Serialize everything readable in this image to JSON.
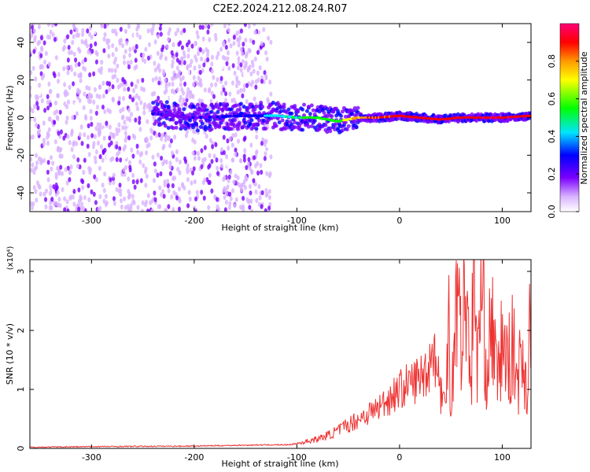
{
  "figure_title": "C2E2.2024.212.08.24.R07",
  "colorbar_label": "Normalized spectral amplitude",
  "colorbar_ticks": [
    "0.0",
    "0.2",
    "0.4",
    "0.6",
    "0.8"
  ],
  "colorscale": [
    "#ffffff",
    "#d9b3ff",
    "#7a00ff",
    "#0000ff",
    "#00e5ff",
    "#00ff00",
    "#ffff00",
    "#ff9900",
    "#ff0000",
    "#ff0077"
  ],
  "chart_data": [
    {
      "type": "heatmap",
      "title": "",
      "xlabel": "Height of straight line (km)",
      "ylabel": "Frequency (Hz)",
      "xlim": [
        -360,
        128
      ],
      "ylim": [
        -50,
        50
      ],
      "x_ticks": [
        "-300",
        "-200",
        "-100",
        "0",
        "100"
      ],
      "y_ticks": [
        "-40",
        "-20",
        "0",
        "20",
        "40"
      ],
      "color_range": [
        0,
        1
      ],
      "ridge": {
        "description": "narrow high-amplitude line near 0 Hz",
        "x": [
          -240,
          -200,
          -150,
          -120,
          -100,
          -80,
          -60,
          -40,
          -20,
          0,
          20,
          40,
          60,
          80,
          100,
          128
        ],
        "frequency": [
          2,
          0,
          1,
          1,
          0,
          0,
          -2,
          0,
          0,
          1,
          0,
          -1,
          0,
          0,
          0,
          1
        ],
        "amplitude": [
          0.25,
          0.25,
          0.3,
          0.45,
          0.5,
          0.55,
          0.55,
          0.75,
          0.85,
          0.9,
          0.9,
          0.9,
          0.9,
          0.9,
          0.9,
          0.9
        ]
      },
      "noise_extent_x": [
        -360,
        -125
      ]
    },
    {
      "type": "line",
      "title": "",
      "xlabel": "Height of straight line (km)",
      "ylabel": "SNR (10 * v/v)",
      "y_multiplier": "(x10⁴)",
      "xlim": [
        -360,
        128
      ],
      "ylim": [
        0,
        3.2
      ],
      "x_ticks": [
        "-300",
        "-200",
        "-100",
        "0",
        "100"
      ],
      "y_ticks": [
        "0",
        "1",
        "2",
        "3"
      ],
      "series": [
        {
          "color": "#ee3333",
          "x": [
            -360,
            -300,
            -200,
            -130,
            -110,
            -100,
            -90,
            -80,
            -70,
            -60,
            -50,
            -40,
            -30,
            -20,
            -10,
            0,
            10,
            20,
            25,
            30,
            33,
            36,
            40,
            45,
            48,
            50,
            55,
            60,
            65,
            70,
            72,
            75,
            80,
            85,
            90,
            95,
            100,
            105,
            110,
            115,
            120,
            125,
            128
          ],
          "y": [
            0.02,
            0.03,
            0.04,
            0.06,
            0.06,
            0.08,
            0.12,
            0.16,
            0.22,
            0.3,
            0.4,
            0.5,
            0.6,
            0.7,
            0.85,
            1.0,
            1.1,
            1.2,
            1.3,
            1.45,
            1.8,
            1.35,
            1.05,
            0.6,
            2.9,
            0.4,
            2.8,
            1.9,
            2.6,
            1.2,
            3.15,
            1.5,
            2.6,
            1.3,
            2.2,
            1.1,
            1.8,
            1.4,
            1.7,
            1.2,
            1.6,
            0.9,
            2.9
          ]
        }
      ]
    }
  ]
}
